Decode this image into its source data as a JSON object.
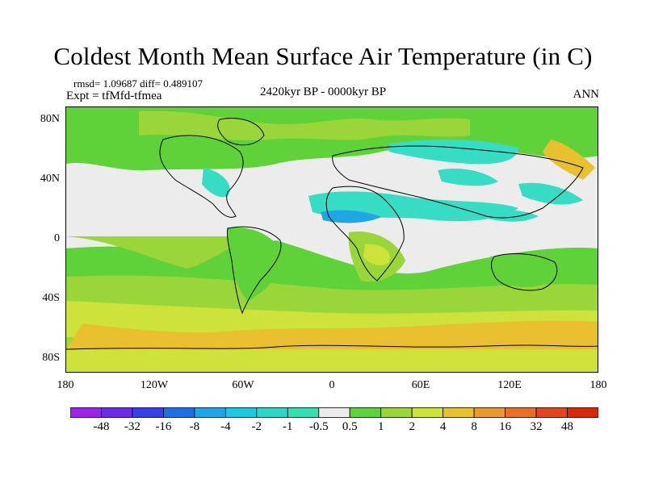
{
  "title": "Coldest Month Mean Surface Air Temperature (in C)",
  "stats": {
    "text": "rmsd= 1.09687 diff= 0.489107"
  },
  "experiment": "Expt = tfMfd-tfmea",
  "period": "2420kyr BP - 0000kyr BP",
  "season": "ANN",
  "map": {
    "y_ticks": [
      "80N",
      "40N",
      "0",
      "40S",
      "80S"
    ],
    "x_ticks": [
      "180",
      "120W",
      "60W",
      "0",
      "60E",
      "120E",
      "180"
    ]
  },
  "colorbar": {
    "labels": [
      "-48",
      "-32",
      "-16",
      "-8",
      "-4",
      "-2",
      "-1",
      "-0.5",
      "0.5",
      "1",
      "2",
      "4",
      "8",
      "16",
      "32",
      "48"
    ],
    "colors": [
      "#9d23e6",
      "#6a2ee6",
      "#3a3ee8",
      "#1f6fe6",
      "#1ea6e6",
      "#1ec8e0",
      "#2ed6c8",
      "#35e0b0",
      "#ececec",
      "#5ed238",
      "#9ad63a",
      "#cde23a",
      "#e8c030",
      "#e89a30",
      "#e86e2a",
      "#e2461e",
      "#d8280c"
    ]
  },
  "colors": {
    "neutral": "#ececec",
    "green": "#5ed238",
    "lightgreen": "#9ad63a",
    "yellowgreen": "#cde23a",
    "cyan": "#36dcc4",
    "blue": "#1ea6e6",
    "orange": "#e8c030"
  }
}
